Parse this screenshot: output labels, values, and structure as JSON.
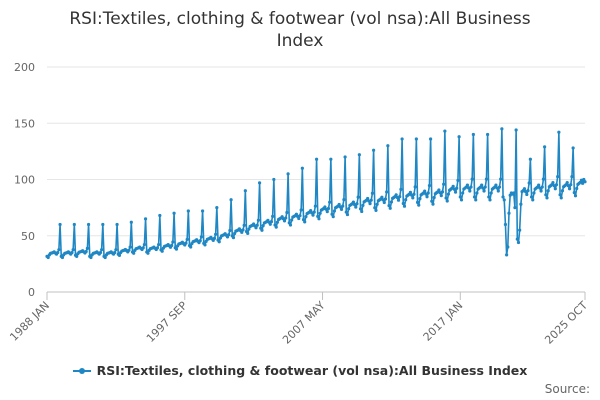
{
  "chart_data": {
    "type": "line",
    "title_line1": "RSI:Textiles, clothing & footwear (vol nsa):All Business",
    "title_line2": "Index",
    "xlabel": "",
    "ylabel": "",
    "ylim": [
      0,
      200
    ],
    "yticks": [
      0,
      50,
      100,
      150,
      200
    ],
    "x_tick_labels": [
      "1988 JAN",
      "1997 SEP",
      "2007 MAY",
      "2017 JAN",
      "2025 OCT"
    ],
    "grid": "horizontal",
    "legend_position": "bottom",
    "source_label": "Source:",
    "series": [
      {
        "name": "RSI:Textiles, clothing & footwear (vol nsa):All Business Index",
        "color": "#1f87c4",
        "start": "1988 JAN",
        "end": "2025 OCT",
        "frequency": "monthly",
        "annual_anchors": [
          {
            "year": 1988,
            "base": 33,
            "dec": 60
          },
          {
            "year": 1989,
            "base": 33,
            "dec": 60
          },
          {
            "year": 1990,
            "base": 34,
            "dec": 60
          },
          {
            "year": 1991,
            "base": 33,
            "dec": 60
          },
          {
            "year": 1992,
            "base": 33,
            "dec": 60
          },
          {
            "year": 1993,
            "base": 35,
            "dec": 62
          },
          {
            "year": 1994,
            "base": 37,
            "dec": 65
          },
          {
            "year": 1995,
            "base": 37,
            "dec": 68
          },
          {
            "year": 1996,
            "base": 39,
            "dec": 70
          },
          {
            "year": 1997,
            "base": 41,
            "dec": 72
          },
          {
            "year": 1998,
            "base": 43,
            "dec": 72
          },
          {
            "year": 1999,
            "base": 45,
            "dec": 75
          },
          {
            "year": 2000,
            "base": 48,
            "dec": 82
          },
          {
            "year": 2001,
            "base": 52,
            "dec": 90
          },
          {
            "year": 2002,
            "base": 56,
            "dec": 97
          },
          {
            "year": 2003,
            "base": 59,
            "dec": 100
          },
          {
            "year": 2004,
            "base": 62,
            "dec": 105
          },
          {
            "year": 2005,
            "base": 64,
            "dec": 110
          },
          {
            "year": 2006,
            "base": 67,
            "dec": 118
          },
          {
            "year": 2007,
            "base": 70,
            "dec": 118
          },
          {
            "year": 2008,
            "base": 72,
            "dec": 120
          },
          {
            "year": 2009,
            "base": 74,
            "dec": 122
          },
          {
            "year": 2010,
            "base": 77,
            "dec": 126
          },
          {
            "year": 2011,
            "base": 78,
            "dec": 130
          },
          {
            "year": 2012,
            "base": 80,
            "dec": 136
          },
          {
            "year": 2013,
            "base": 82,
            "dec": 136
          },
          {
            "year": 2014,
            "base": 83,
            "dec": 136
          },
          {
            "year": 2015,
            "base": 84,
            "dec": 143
          },
          {
            "year": 2016,
            "base": 87,
            "dec": 138
          },
          {
            "year": 2017,
            "base": 88,
            "dec": 140
          },
          {
            "year": 2018,
            "base": 88,
            "dec": 140
          },
          {
            "year": 2019,
            "base": 88,
            "dec": 145
          },
          {
            "year": 2020,
            "base": 88,
            "dec": 144
          },
          {
            "year": 2021,
            "base": 85,
            "dec": 118
          },
          {
            "year": 2022,
            "base": 88,
            "dec": 129
          },
          {
            "year": 2023,
            "base": 90,
            "dec": 142
          },
          {
            "year": 2024,
            "base": 90,
            "dec": 128
          },
          {
            "year": 2025,
            "base": 92,
            "dec": 131
          }
        ],
        "overrides": {
          "2020-03": 60,
          "2020-04": 33,
          "2020-05": 40,
          "2020-06": 70,
          "2020-07": 86,
          "2020-08": 88,
          "2020-09": 87,
          "2020-10": 88,
          "2020-11": 75,
          "2021-01": 47,
          "2021-02": 44,
          "2021-03": 55,
          "2021-04": 78,
          "2025-09": 100,
          "2025-10": 98
        }
      }
    ]
  }
}
